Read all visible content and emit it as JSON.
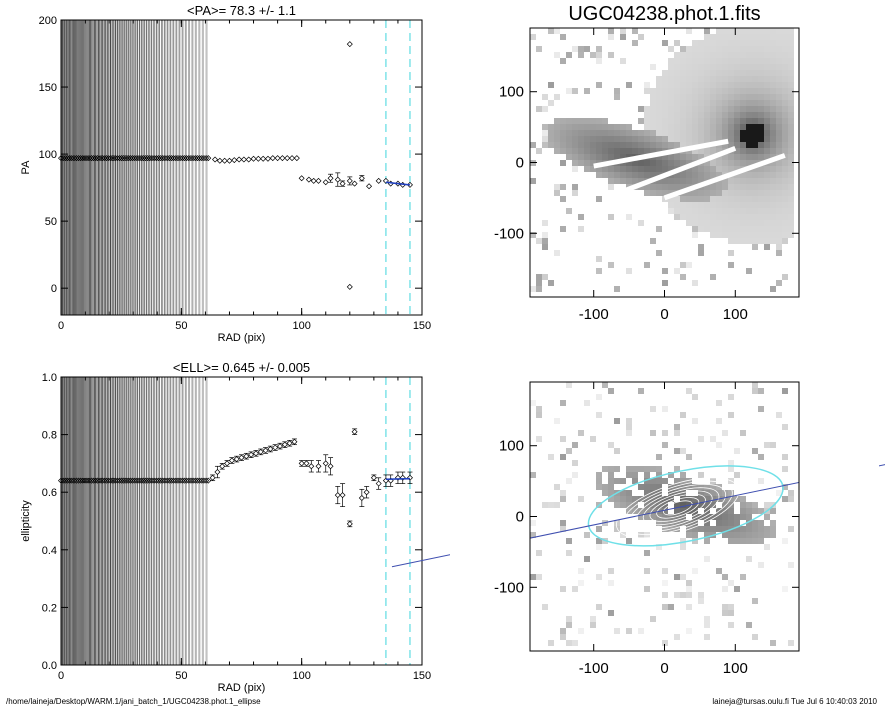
{
  "footer": {
    "path": "/home/laineja/Desktop/WARM.1/jani_batch_1/UGC04238.phot.1_ellipse",
    "user_stamp": "laineja@tursas.oulu.fi  Tue Jul  6 10:40:03 2010"
  },
  "chart_data": [
    {
      "type": "scatter",
      "title": "<PA>=  78.3 +/-   1.1",
      "xlabel": "RAD (pix)",
      "ylabel": "PA",
      "xlim": [
        0,
        150
      ],
      "ylim": [
        -20,
        200
      ],
      "xticks": [
        0,
        50,
        100,
        150
      ],
      "yticks": [
        0,
        50,
        100,
        150,
        200
      ],
      "fit_range_dashed_lines_x": [
        135,
        145
      ],
      "shaded_rings_to_x": 62,
      "series": [
        {
          "values_x": [
            0,
            62
          ],
          "values_y": [
            97,
            97
          ],
          "style": "dense markers"
        },
        {
          "x": [
            64,
            66,
            68,
            70,
            72,
            74,
            76,
            78,
            80,
            82,
            84,
            86,
            88,
            90,
            92,
            94,
            96,
            98
          ],
          "y": [
            96,
            95,
            95,
            95,
            95.5,
            96,
            96,
            96,
            96.5,
            96.5,
            96.5,
            96.5,
            97,
            97,
            97,
            97,
            97,
            97
          ]
        },
        {
          "x": [
            100,
            103,
            105,
            107,
            110,
            112,
            115,
            117,
            120,
            122,
            125,
            128,
            132,
            135,
            137,
            140,
            142,
            145
          ],
          "y": [
            82,
            81,
            80,
            80,
            79,
            82,
            81,
            78,
            80,
            78,
            82,
            76,
            80,
            80,
            78,
            78,
            77,
            77
          ],
          "yerr": [
            1,
            1,
            1,
            1,
            1,
            3,
            5,
            2,
            3,
            1,
            2,
            1,
            1,
            1,
            1,
            1,
            1,
            1
          ]
        },
        {
          "x": [
            120,
            120
          ],
          "y": [
            182,
            1
          ]
        }
      ],
      "fit_x": [
        135,
        145
      ],
      "fit_y": [
        79,
        77
      ]
    },
    {
      "type": "scatter",
      "title": "<ELL>= 0.645 +/-  0.005",
      "xlabel": "RAD (pix)",
      "ylabel": "ellipticity",
      "xlim": [
        0,
        150
      ],
      "ylim": [
        0,
        1
      ],
      "xticks": [
        0,
        50,
        100,
        150
      ],
      "yticks": [
        "0.0",
        "0.2",
        "0.4",
        "0.6",
        "0.8",
        "1.0"
      ],
      "fit_range_dashed_lines_x": [
        135,
        145
      ],
      "shaded_rings_to_x": 62,
      "series": [
        {
          "values_x": [
            0,
            62
          ],
          "values_y": [
            0.64,
            0.64
          ],
          "style": "dense markers"
        },
        {
          "x": [
            63,
            65,
            67,
            69,
            71,
            73,
            75,
            77,
            79,
            81,
            83,
            85,
            87,
            89,
            91,
            93,
            95,
            97
          ],
          "y": [
            0.65,
            0.67,
            0.69,
            0.7,
            0.71,
            0.715,
            0.72,
            0.725,
            0.73,
            0.735,
            0.74,
            0.745,
            0.75,
            0.755,
            0.76,
            0.765,
            0.77,
            0.775
          ],
          "yerr": [
            0.01,
            0.02,
            0.01,
            0.01,
            0.01,
            0.01,
            0.01,
            0.01,
            0.01,
            0.01,
            0.01,
            0.01,
            0.01,
            0.01,
            0.01,
            0.01,
            0.01,
            0.01
          ]
        },
        {
          "x": [
            100,
            102,
            104,
            107,
            110,
            112,
            115,
            117,
            120,
            122,
            125,
            127,
            130,
            132,
            135,
            137,
            140,
            142,
            145
          ],
          "y": [
            0.7,
            0.7,
            0.69,
            0.69,
            0.7,
            0.69,
            0.59,
            0.59,
            0.49,
            0.81,
            0.58,
            0.6,
            0.65,
            0.63,
            0.64,
            0.64,
            0.65,
            0.65,
            0.65
          ],
          "yerr": [
            0.01,
            0.01,
            0.02,
            0.02,
            0.03,
            0.03,
            0.03,
            0.04,
            0.01,
            0.01,
            0.03,
            0.02,
            0.01,
            0.02,
            0.02,
            0.02,
            0.02,
            0.02,
            0.02
          ]
        }
      ],
      "fit_x": [
        135,
        145
      ],
      "fit_y": [
        0.645,
        0.647
      ]
    },
    {
      "type": "heatmap",
      "title": "UGC04238.phot.1.fits",
      "xlim": [
        -190,
        190
      ],
      "ylim": [
        -190,
        190
      ],
      "xticks": [
        -100,
        0,
        100
      ],
      "yticks": [
        -100,
        0,
        100
      ]
    },
    {
      "type": "heatmap",
      "title": "",
      "xlim": [
        -190,
        190
      ],
      "ylim": [
        -190,
        190
      ],
      "xticks": [
        -100,
        0,
        100
      ],
      "yticks": [
        -100,
        0,
        100
      ],
      "ellipse": {
        "center": [
          30,
          15
        ],
        "semi_major": 140,
        "ellipticity": 0.645,
        "pa_deg": 78.3
      }
    }
  ]
}
